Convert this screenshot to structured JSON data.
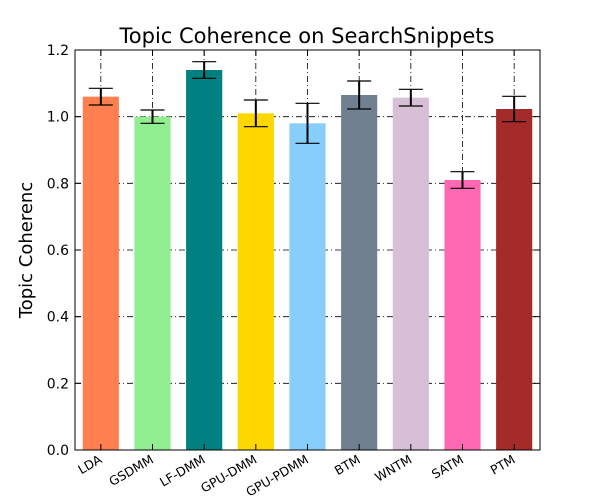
{
  "chart_data": {
    "type": "bar",
    "title": "Topic Coherence on SearchSnippets",
    "xlabel": "",
    "ylabel": "Topic Coherenc",
    "ylim": [
      0,
      1.2
    ],
    "yticks": [
      "0.0",
      "0.2",
      "0.4",
      "0.6",
      "0.8",
      "1.0",
      "1.2"
    ],
    "grid": true,
    "categories": [
      "LDA",
      "GSDMM",
      "LF-DMM",
      "GPU-DMM",
      "GPU-PDMM",
      "BTM",
      "WNTM",
      "SATM",
      "PTM"
    ],
    "values": [
      1.06,
      1.0,
      1.14,
      1.01,
      0.98,
      1.065,
      1.057,
      0.81,
      1.023
    ],
    "errors": [
      0.025,
      0.02,
      0.025,
      0.04,
      0.06,
      0.042,
      0.025,
      0.025,
      0.038
    ],
    "colors": [
      "#ff7f50",
      "#90ee90",
      "#008080",
      "#ffd700",
      "#87cefa",
      "#708090",
      "#d8bfd8",
      "#ff69b4",
      "#a52a2a"
    ]
  }
}
